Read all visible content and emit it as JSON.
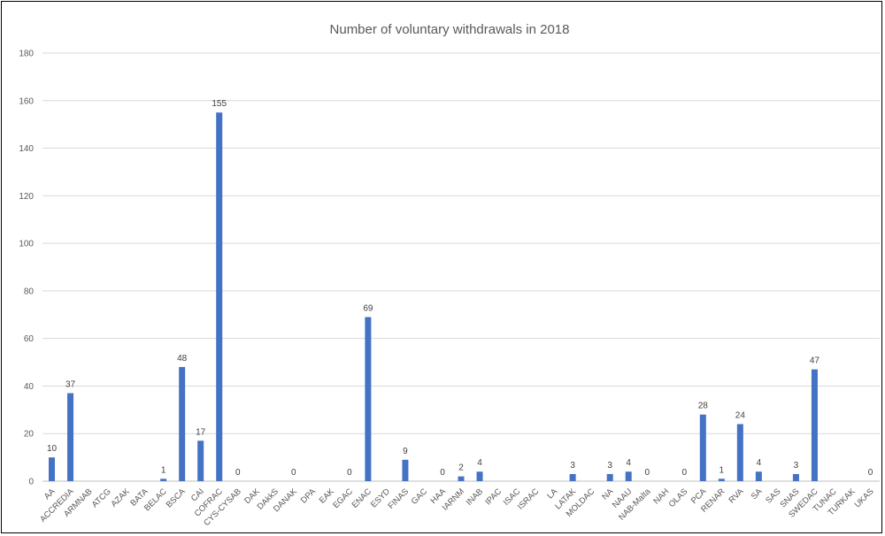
{
  "chart_data": {
    "type": "bar",
    "title": "Number of voluntary withdrawals in 2018",
    "xlabel": "",
    "ylabel": "",
    "ylim": [
      0,
      180
    ],
    "yticks": [
      0,
      20,
      40,
      60,
      80,
      100,
      120,
      140,
      160,
      180
    ],
    "grid": true,
    "legend": "none",
    "bar_color": "#4472c4",
    "categories": [
      "AA",
      "ACCREDIA",
      "ARMNAB",
      "ATCG",
      "AZAK",
      "BATA",
      "BELAC",
      "BSCA",
      "CAI",
      "COFRAC",
      "CYS-CYSAB",
      "DAK",
      "DAkkS",
      "DANAK",
      "DPA",
      "EAK",
      "EGAC",
      "ENAC",
      "ESYD",
      "FINAS",
      "GAC",
      "HAA",
      "IARNM",
      "INAB",
      "IPAC",
      "ISAC",
      "ISRAC",
      "LA",
      "LATAK",
      "MOLDAC",
      "NA",
      "NAAU",
      "NAB-Malta",
      "NAH",
      "OLAS",
      "PCA",
      "RENAR",
      "RVA",
      "SA",
      "SAS",
      "SNAS",
      "SWEDAC",
      "TUNAC",
      "TURKAK",
      "UKAS"
    ],
    "values": [
      10,
      37,
      null,
      null,
      null,
      null,
      1,
      48,
      17,
      155,
      0,
      null,
      null,
      0,
      null,
      null,
      0,
      69,
      null,
      9,
      null,
      0,
      2,
      4,
      null,
      null,
      null,
      null,
      3,
      null,
      3,
      4,
      0,
      null,
      0,
      28,
      1,
      24,
      4,
      null,
      3,
      47,
      null,
      null,
      0
    ]
  }
}
